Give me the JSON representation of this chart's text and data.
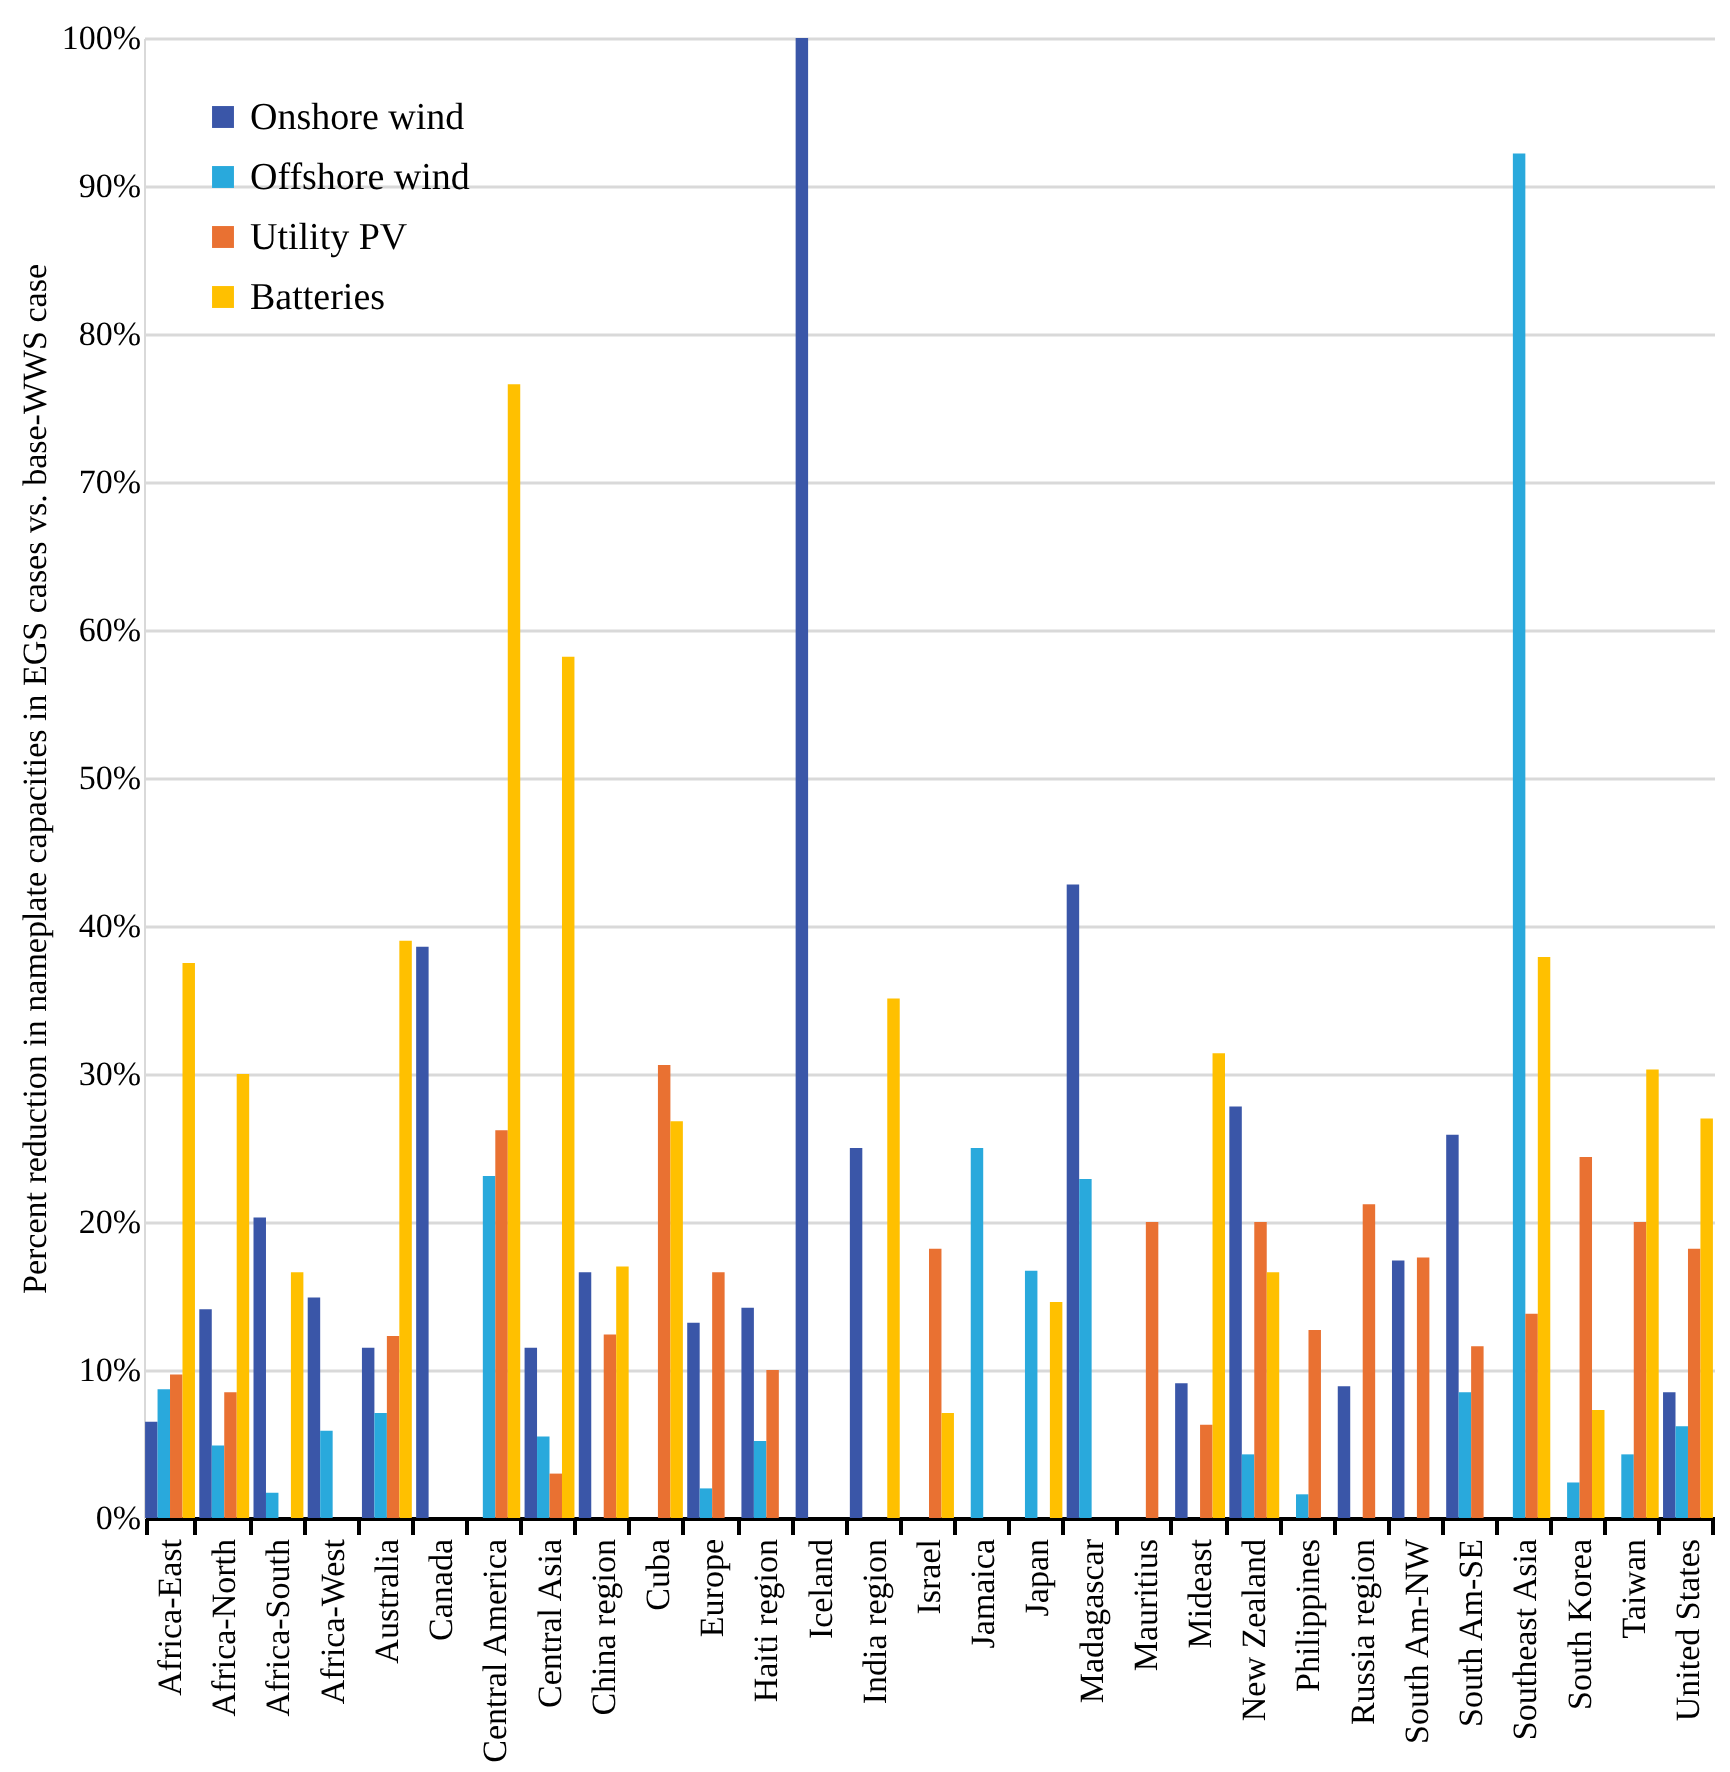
{
  "chart_data": {
    "type": "bar",
    "ylabel": "Percent reduction in nameplate capacities in EGS cases vs. base-WWS case",
    "categories": [
      "Africa-East",
      "Africa-North",
      "Africa-South",
      "Africa-West",
      "Australia",
      "Canada",
      "Central America",
      "Central Asia",
      "China region",
      "Cuba",
      "Europe",
      "Haiti region",
      "Iceland",
      "India region",
      "Israel",
      "Jamaica",
      "Japan",
      "Madagascar",
      "Mauritius",
      "Mideast",
      "New Zealand",
      "Philippines",
      "Russia region",
      "South Am-NW",
      "South Am-SE",
      "Southeast Asia",
      "South Korea",
      "Taiwan",
      "United States"
    ],
    "series": [
      {
        "name": "Onshore wind",
        "color": "#3a56a8",
        "values": [
          6.5,
          14.1,
          20.3,
          14.9,
          11.5,
          38.6,
          0,
          11.5,
          16.6,
          0,
          13.2,
          14.2,
          100,
          25,
          0,
          0,
          0,
          42.8,
          0,
          9.1,
          27.8,
          0,
          8.9,
          17.4,
          25.9,
          0,
          0,
          0,
          8.5
        ]
      },
      {
        "name": "Offshore wind",
        "color": "#29a9dc",
        "values": [
          8.7,
          4.9,
          1.7,
          5.9,
          7.1,
          0,
          23.1,
          5.5,
          0,
          0,
          2.0,
          5.2,
          0,
          0,
          0,
          25,
          16.7,
          22.9,
          0,
          0,
          4.3,
          1.6,
          0,
          0,
          8.5,
          92.2,
          2.4,
          4.3,
          6.2
        ]
      },
      {
        "name": "Utility PV",
        "color": "#e97132",
        "values": [
          9.7,
          8.5,
          0,
          0,
          12.3,
          0,
          26.2,
          3.0,
          12.4,
          30.6,
          16.6,
          10,
          0,
          0,
          18.2,
          0,
          0,
          0,
          20,
          6.3,
          20,
          12.7,
          21.2,
          17.6,
          11.6,
          13.8,
          24.4,
          20,
          18.2
        ]
      },
      {
        "name": "Batteries",
        "color": "#ffc000",
        "values": [
          37.5,
          30,
          16.6,
          0,
          39,
          0,
          76.6,
          58.2,
          17,
          26.8,
          0,
          0,
          0,
          35.1,
          7.1,
          0,
          14.6,
          0,
          0,
          31.4,
          16.6,
          0,
          0,
          0,
          0,
          37.9,
          7.3,
          30.3,
          27
        ]
      }
    ],
    "ylim": [
      0,
      100
    ],
    "yticks": [
      {
        "value": 0,
        "label": "0%"
      },
      {
        "value": 10,
        "label": "10%"
      },
      {
        "value": 20,
        "label": "20%"
      },
      {
        "value": 30,
        "label": "30%"
      },
      {
        "value": 40,
        "label": "40%"
      },
      {
        "value": 50,
        "label": "50%"
      },
      {
        "value": 60,
        "label": "60%"
      },
      {
        "value": 70,
        "label": "70%"
      },
      {
        "value": 80,
        "label": "80%"
      },
      {
        "value": 90,
        "label": "90%"
      },
      {
        "value": 100,
        "label": "100%"
      }
    ],
    "grid": "y",
    "legend": "top left"
  }
}
